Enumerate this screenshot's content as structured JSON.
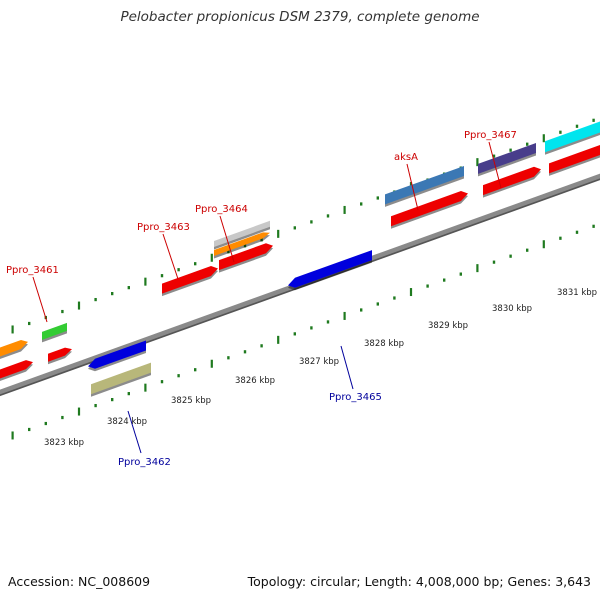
{
  "title": "Pelobacter propionicus DSM 2379, complete genome",
  "footer": {
    "accession": "Accession: NC_008609",
    "topology": "Topology: circular; Length: 4,008,000 bp; Genes: 3,643"
  },
  "colors": {
    "backbone": "#8a8a8a",
    "tick": "#1f7a1f",
    "forward_label": "#cc0000",
    "reverse_label": "#00009c"
  },
  "scale_labels": [
    {
      "kbp": 3823,
      "text": "3823 kbp"
    },
    {
      "kbp": 3824,
      "text": "3824 kbp"
    },
    {
      "kbp": 3825,
      "text": "3825 kbp"
    },
    {
      "kbp": 3826,
      "text": "3826 kbp"
    },
    {
      "kbp": 3827,
      "text": "3827 kbp"
    },
    {
      "kbp": 3828,
      "text": "3828 kbp"
    },
    {
      "kbp": 3829,
      "text": "3829 kbp"
    },
    {
      "kbp": 3830,
      "text": "3830 kbp"
    },
    {
      "kbp": 3831,
      "text": "3831 kbp"
    }
  ],
  "labels": [
    {
      "text": "Ppro_3461",
      "strand": "forward"
    },
    {
      "text": "Ppro_3463",
      "strand": "forward"
    },
    {
      "text": "Ppro_3464",
      "strand": "forward"
    },
    {
      "text": "aksA",
      "strand": "forward"
    },
    {
      "text": "Ppro_3467",
      "strand": "forward"
    },
    {
      "text": "Ppro_3462",
      "strand": "reverse"
    },
    {
      "text": "Ppro_3465",
      "strand": "reverse"
    }
  ]
}
